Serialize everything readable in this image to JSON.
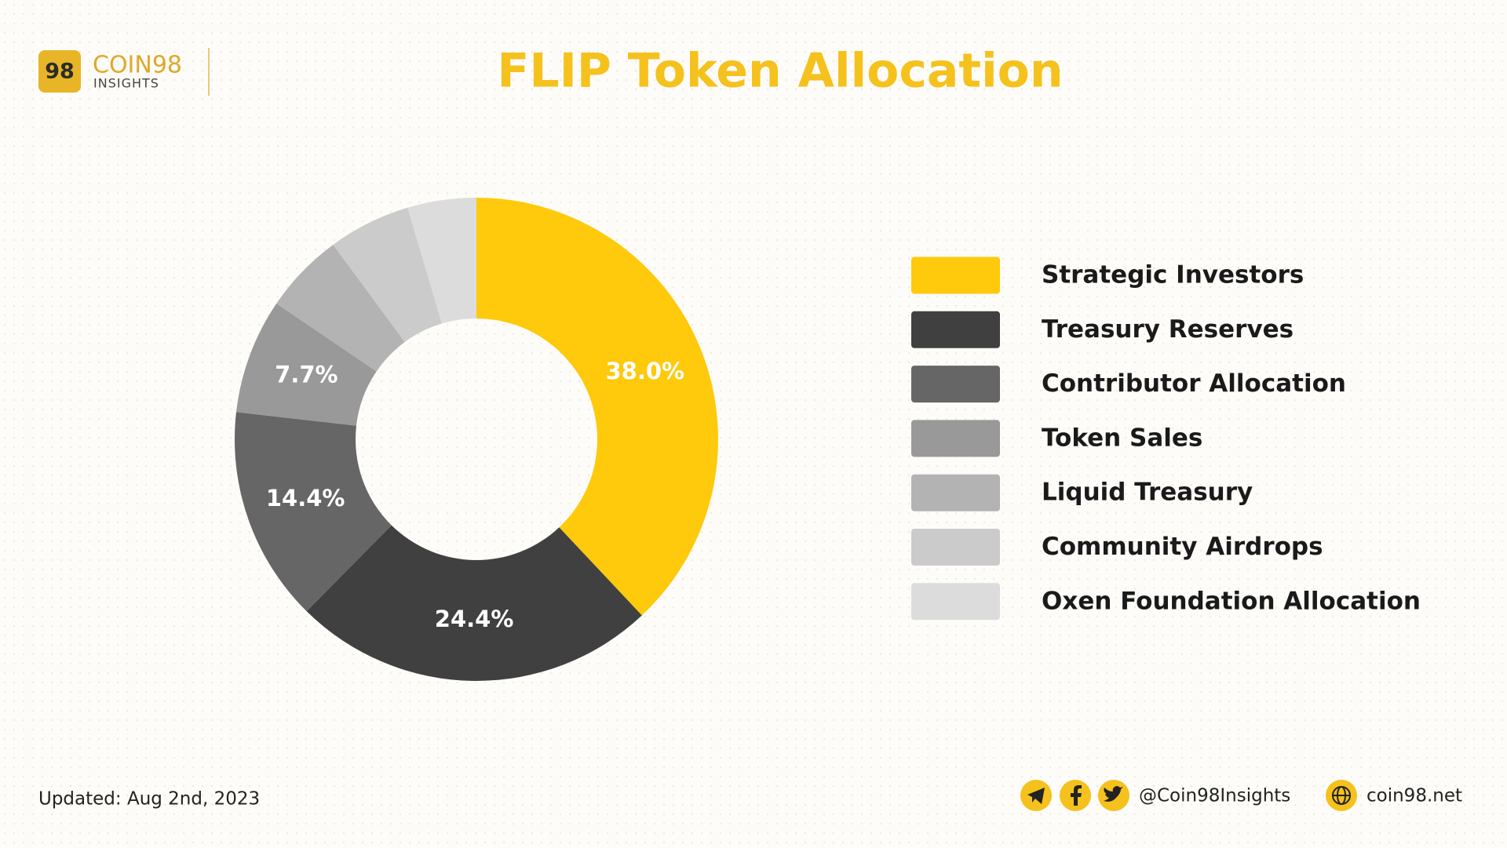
{
  "logo": {
    "badge": "98",
    "name": "COIN98",
    "sub": "INSIGHTS"
  },
  "chart_data": {
    "type": "donut",
    "title": "FLIP Token Allocation",
    "categories": [
      "Strategic Investors",
      "Treasury Reserves",
      "Contributor Allocation",
      "Token Sales",
      "Liquid Treasury",
      "Community Airdrops",
      "Oxen Foundation Allocation"
    ],
    "values": [
      38.0,
      24.4,
      14.4,
      7.7,
      5.4,
      5.5,
      4.6
    ],
    "value_labels": [
      "38.0%",
      "24.4%",
      "14.4%",
      "7.7%",
      null,
      null,
      null
    ],
    "colors": [
      "#ffc90c",
      "#404040",
      "#666666",
      "#999999",
      "#b3b3b3",
      "#cbcbcb",
      "#dcdcdc"
    ],
    "legend": "right"
  },
  "footer": {
    "updated": "Updated: Aug 2nd, 2023",
    "handle": "@Coin98Insights",
    "site": "coin98.net"
  }
}
